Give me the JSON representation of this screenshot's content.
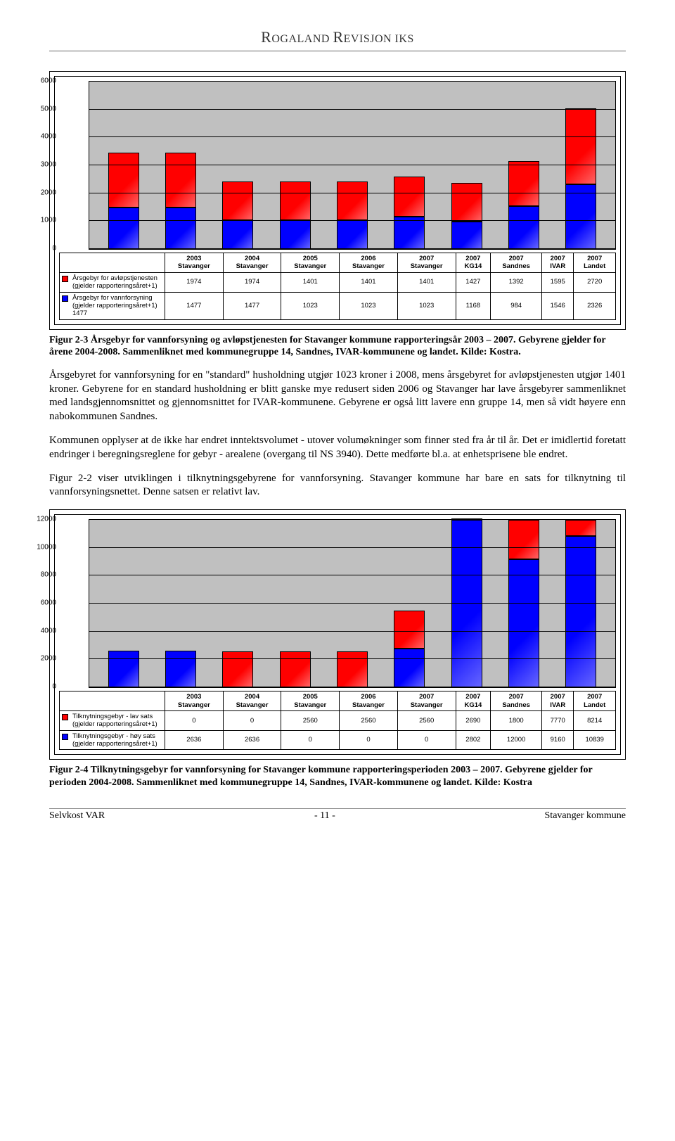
{
  "header": {
    "company": "ROGALAND REVISJON IKS"
  },
  "chart1": {
    "type": "stacked-bar",
    "ylim": [
      0,
      6000
    ],
    "ytick_step": 1000,
    "yticks": [
      "0",
      "1000",
      "2000",
      "3000",
      "4000",
      "5000",
      "6000"
    ],
    "background_color": "#c0c0c0",
    "grid_color": "#000000",
    "categories_top": [
      "2003",
      "2004",
      "2005",
      "2006",
      "2007",
      "2007",
      "2007",
      "2007",
      "2007"
    ],
    "categories_bottom": [
      "Stavanger",
      "Stavanger",
      "Stavanger",
      "Stavanger",
      "Stavanger",
      "KG14",
      "Sandnes",
      "IVAR",
      "Landet"
    ],
    "series": [
      {
        "name": "Årsgebyr for avløpstjenesten (gjelder rapporteringsåret+1)",
        "color": "#ff0000",
        "values": [
          1974,
          1974,
          1401,
          1401,
          1401,
          1427,
          1392,
          1595,
          2720
        ]
      },
      {
        "name": "Årsgebyr for vannforsyning (gjelder rapporteringsåret+1) 1477",
        "color": "#0000ff",
        "values": [
          1477,
          1477,
          1023,
          1023,
          1023,
          1168,
          984,
          1546,
          2326
        ]
      }
    ]
  },
  "caption1": "Figur 2-3 Årsgebyr for vannforsyning og avløpstjenesten for Stavanger kommune rapporteringsår 2003 – 2007. Gebyrene gjelder for årene 2004-2008. Sammenliknet med kommunegruppe 14, Sandnes, IVAR-kommunene og landet. Kilde: Kostra.",
  "para1": "Årsgebyret for vannforsyning for en \"standard\" husholdning utgjør 1023 kroner i 2008, mens årsgebyret for avløpstjenesten utgjør 1401 kroner. Gebyrene for en standard husholdning er blitt ganske mye redusert siden 2006 og Stavanger har lave årsgebyrer sammenliknet med landsgjennomsnittet og gjennomsnittet for IVAR-kommunene. Gebyrene er også litt lavere enn gruppe 14, men så vidt høyere enn nabokommunen Sandnes.",
  "para2": "Kommunen opplyser at de ikke har endret inntektsvolumet - utover volumøkninger som finner sted fra år til år. Det er imidlertid foretatt endringer i beregningsreglene for gebyr - arealene (overgang til NS 3940). Dette medførte bl.a. at enhetsprisene ble endret.",
  "para3": "Figur 2-2 viser utviklingen i tilknytningsgebyrene for vannforsyning. Stavanger kommune har bare en sats for tilknytning til vannforsyningsnettet. Denne satsen er relativt lav.",
  "chart2": {
    "type": "stacked-bar",
    "ylim": [
      0,
      12000
    ],
    "ytick_step": 2000,
    "yticks": [
      "0",
      "2000",
      "4000",
      "6000",
      "8000",
      "10000",
      "12000"
    ],
    "background_color": "#c0c0c0",
    "grid_color": "#000000",
    "categories_top": [
      "2003",
      "2004",
      "2005",
      "2006",
      "2007",
      "2007",
      "2007",
      "2007",
      "2007"
    ],
    "categories_bottom": [
      "Stavanger",
      "Stavanger",
      "Stavanger",
      "Stavanger",
      "Stavanger",
      "KG14",
      "Sandnes",
      "IVAR",
      "Landet"
    ],
    "series": [
      {
        "name": "Tilknytningsgebyr - lav sats (gjelder rapporteringsåret+1)",
        "color": "#ff0000",
        "values": [
          0,
          0,
          2560,
          2560,
          2560,
          2690,
          1800,
          7770,
          8214
        ]
      },
      {
        "name": "Tilknytningsgebyr - høy sats (gjelder rapporteringsåret+1)",
        "color": "#0000ff",
        "values": [
          2636,
          2636,
          0,
          0,
          0,
          2802,
          12000,
          9160,
          10839
        ]
      }
    ]
  },
  "caption2": "Figur 2-4 Tilknytningsgebyr for vannforsyning for Stavanger kommune rapporteringsperioden 2003 – 2007. Gebyrene gjelder for perioden 2004-2008. Sammenliknet med kommunegruppe 14, Sandnes, IVAR-kommunene og landet. Kilde: Kostra",
  "footer": {
    "left": "Selvkost VAR",
    "center": "- 11 -",
    "right": "Stavanger kommune"
  }
}
